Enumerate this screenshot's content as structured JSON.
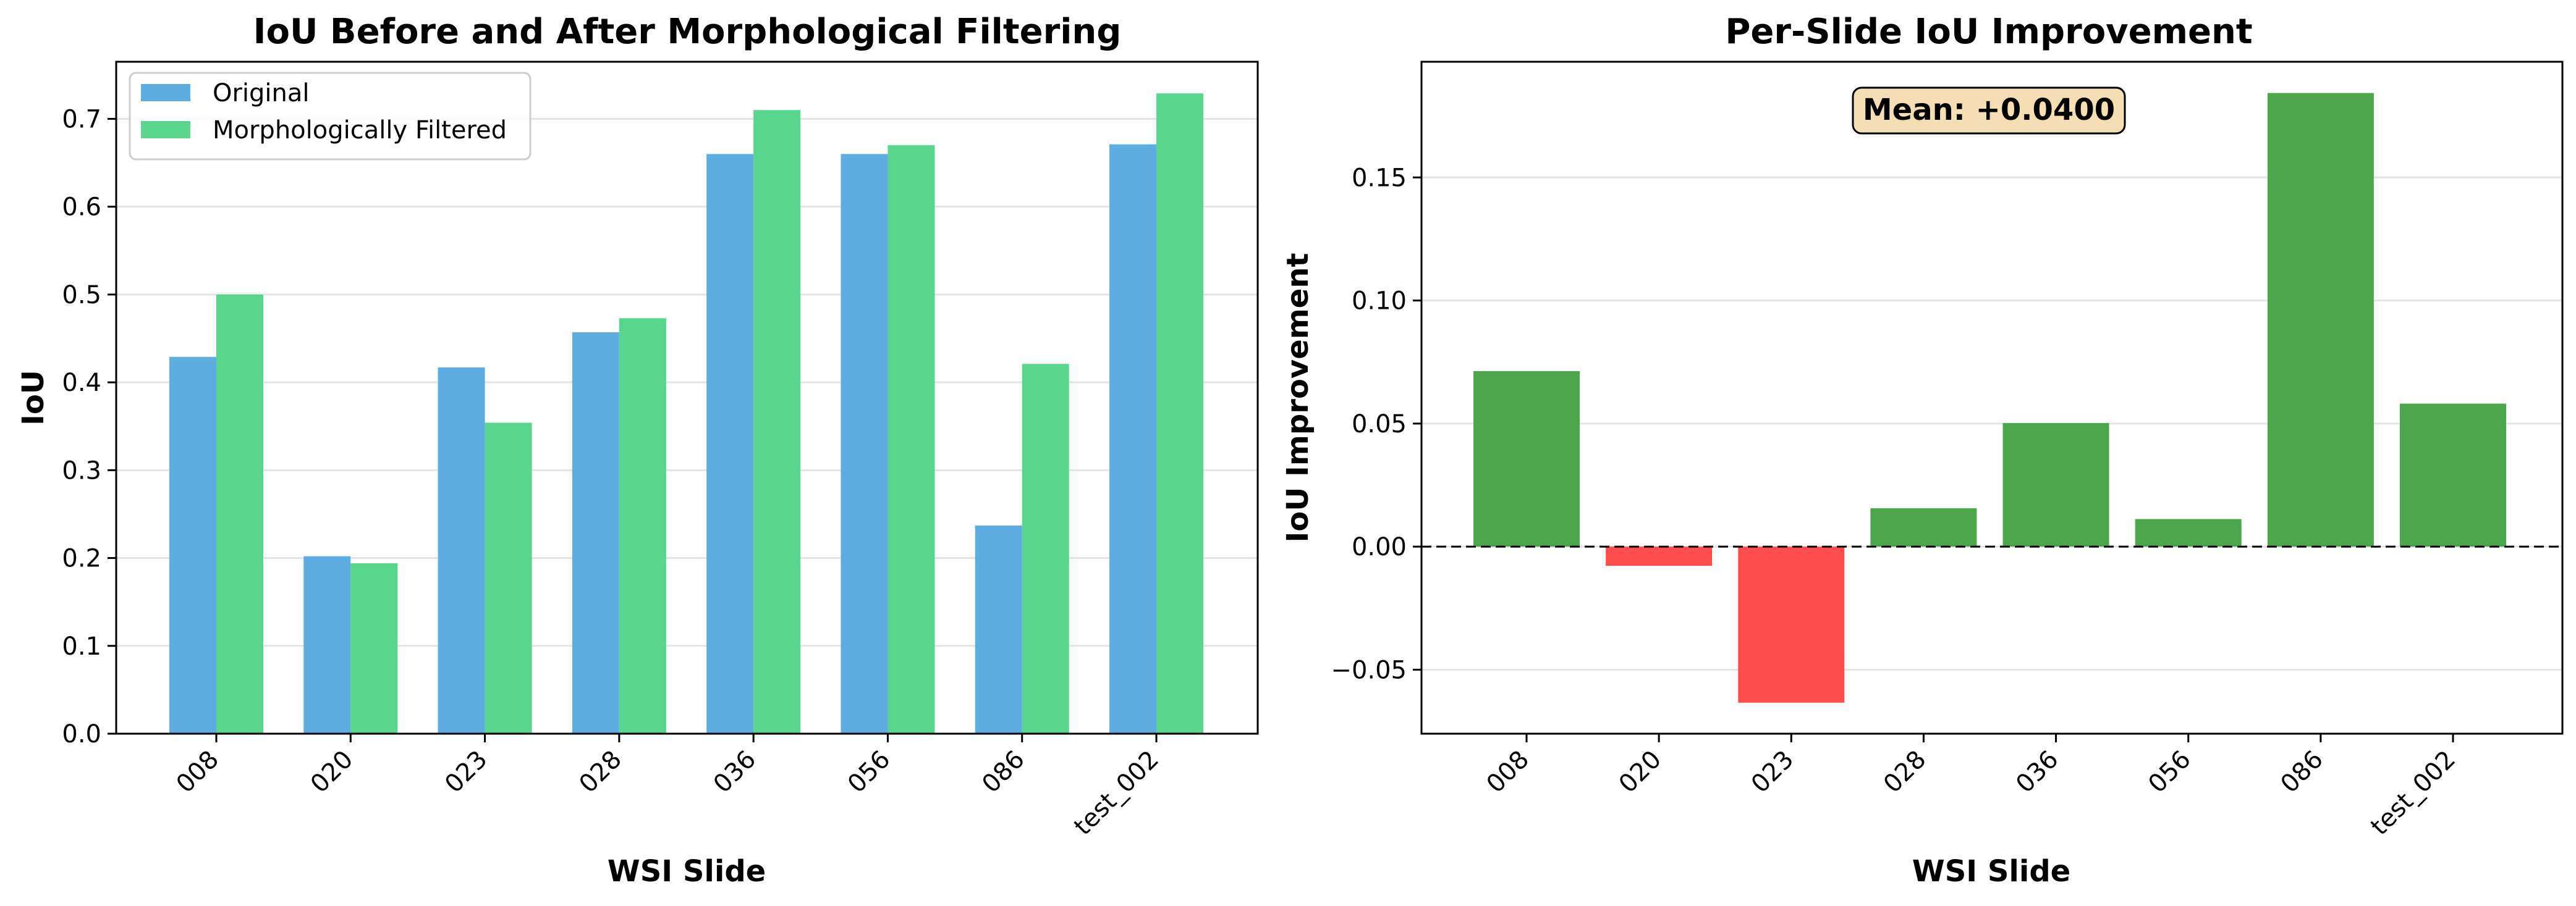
{
  "chart_data": [
    {
      "type": "bar",
      "title": "IoU Before and After Morphological Filtering",
      "xlabel": "WSI Slide",
      "ylabel": "IoU",
      "categories": [
        "008",
        "020",
        "023",
        "028",
        "036",
        "056",
        "086",
        "test_002"
      ],
      "ylim": [
        0,
        0.765
      ],
      "yticks": [
        "0.0",
        "0.1",
        "0.2",
        "0.3",
        "0.4",
        "0.5",
        "0.6",
        "0.7"
      ],
      "grid": "horizontal",
      "legend_position": "upper-left",
      "series": [
        {
          "name": "Original",
          "color": "#5DADE2",
          "values": [
            0.429,
            0.202,
            0.417,
            0.457,
            0.66,
            0.66,
            0.237,
            0.671
          ]
        },
        {
          "name": "Morphologically Filtered",
          "color": "#58D68D",
          "values": [
            0.5,
            0.194,
            0.354,
            0.473,
            0.71,
            0.67,
            0.421,
            0.729
          ]
        }
      ]
    },
    {
      "type": "bar",
      "title": "Per-Slide IoU Improvement",
      "xlabel": "WSI Slide",
      "ylabel": "IoU Improvement",
      "categories": [
        "008",
        "020",
        "023",
        "028",
        "036",
        "056",
        "086",
        "test_002"
      ],
      "values": [
        0.0713,
        -0.0078,
        -0.0634,
        0.0156,
        0.0502,
        0.0112,
        0.1843,
        0.0581
      ],
      "ylim": [
        -0.076,
        0.197
      ],
      "yticks": [
        "−0.05",
        "0.00",
        "0.05",
        "0.10",
        "0.15"
      ],
      "grid": "horizontal",
      "positive_color": "#4CA64C",
      "negative_color": "#FF4D4D",
      "zero_line": "dashed",
      "annotation": "Mean: +0.0400",
      "annotation_position": "top-center",
      "annotation_color": "#F5DEB3"
    }
  ]
}
